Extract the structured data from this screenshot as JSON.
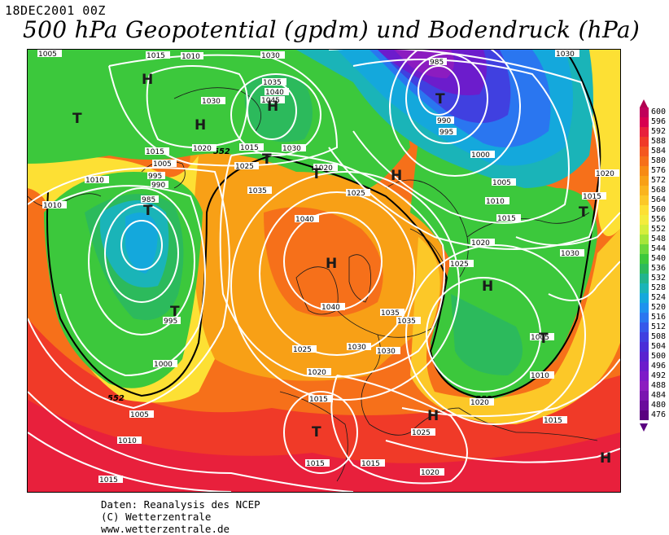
{
  "header": {
    "date": "18DEC2001 00Z",
    "title": "500 hPa Geopotential (gpdm) und Bodendruck (hPa)"
  },
  "colorbar": {
    "levels": [
      "600",
      "596",
      "592",
      "588",
      "584",
      "580",
      "576",
      "572",
      "568",
      "564",
      "560",
      "556",
      "552",
      "548",
      "544",
      "540",
      "536",
      "532",
      "528",
      "524",
      "520",
      "516",
      "512",
      "508",
      "504",
      "500",
      "496",
      "492",
      "488",
      "484",
      "480",
      "476"
    ],
    "colors": [
      "#c0005a",
      "#d80050",
      "#e8203c",
      "#f03a28",
      "#f45820",
      "#f6701a",
      "#f78a14",
      "#f8a016",
      "#fab41e",
      "#fcc828",
      "#fde034",
      "#f4ec3c",
      "#d6ee3c",
      "#a6e63a",
      "#6cd83c",
      "#3cc83c",
      "#2cba5c",
      "#22b48e",
      "#1ab4b8",
      "#14a8dc",
      "#1e92ee",
      "#2a76f0",
      "#3658ea",
      "#4040e0",
      "#4a2ed8",
      "#5a22d0",
      "#6c1ccc",
      "#7e1ac8",
      "#8c1cc0",
      "#7a14b0",
      "#6a0c9c",
      "#5a0080"
    ]
  },
  "map": {
    "pressure_labels": [
      "1005",
      "1015",
      "1010",
      "1030",
      "1035",
      "1040",
      "1045",
      "1030",
      "985",
      "990",
      "995",
      "1000",
      "1005",
      "1010",
      "1015",
      "1020",
      "1025",
      "1030",
      "1015",
      "1005",
      "995",
      "990",
      "985",
      "1010",
      "1010",
      "1015",
      "1020",
      "1025",
      "1030",
      "1035",
      "1040",
      "1040",
      "1035",
      "1035",
      "1030",
      "1025",
      "1030",
      "1020",
      "1015",
      "1025",
      "1020",
      "1015",
      "1015",
      "1005",
      "1000",
      "995",
      "1010",
      "1015",
      "1020",
      "1025",
      "1015",
      "1010",
      "1015",
      "1020",
      "1030",
      "1005",
      "1020"
    ],
    "contour_552_label": "552",
    "highs": [
      "H",
      "H",
      "H",
      "H",
      "H",
      "H",
      "H",
      "H",
      "H"
    ],
    "lows": [
      "T",
      "T",
      "T",
      "T",
      "T",
      "T",
      "T",
      "T",
      "T"
    ]
  },
  "footer": {
    "line1": "Daten: Reanalysis des NCEP",
    "line2": "(C) Wetterzentrale",
    "line3": "www.wetterzentrale.de"
  }
}
